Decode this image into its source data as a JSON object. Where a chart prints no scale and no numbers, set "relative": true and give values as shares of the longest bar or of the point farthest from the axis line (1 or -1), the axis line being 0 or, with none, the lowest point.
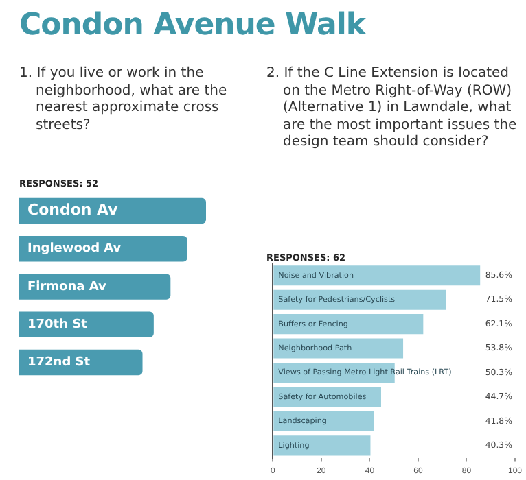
{
  "chart_data": [
    {
      "type": "bar",
      "orientation": "horizontal",
      "relative": true,
      "annotations": [
        "Condon Avenue Walk"
      ],
      "title": "1. If you live or work in the neighborhood, what are the nearest approximate cross streets?",
      "subtitle": "RESPONSES: 52",
      "categories": [
        "Condon Av",
        "Inglewood Av",
        "Firmona Av",
        "170th St",
        "172nd St"
      ],
      "values": [
        1,
        0.9,
        0.81,
        0.72,
        0.66
      ],
      "color": "#4a9bb0"
    },
    {
      "type": "bar",
      "orientation": "horizontal",
      "title": "2. If the C Line Extension is located on the Metro Right-of-Way (ROW) (Alternative 1) in Lawndale, what are the most important issues the design team should consider?",
      "subtitle": "RESPONSES: 62",
      "categories": [
        "Noise and Vibration",
        "Safety for Pedestrians/Cyclists",
        "Buffers or Fencing",
        "Neighborhood Path",
        "Views of Passing Metro Light Rail Trains (LRT)",
        "Safety for Automobiles",
        "Landscaping",
        "Lighting"
      ],
      "values": [
        85.6,
        71.5,
        62.1,
        53.8,
        50.3,
        44.7,
        41.8,
        40.3
      ],
      "value_labels": [
        "85.6%",
        "71.5%",
        "62.1%",
        "53.8%",
        "50.3%",
        "44.7%",
        "41.8%",
        "40.3%"
      ],
      "color": "#9ccfdc",
      "xlim": [
        0,
        100
      ],
      "xticks": [
        0,
        20,
        40,
        60,
        80,
        100
      ]
    }
  ]
}
